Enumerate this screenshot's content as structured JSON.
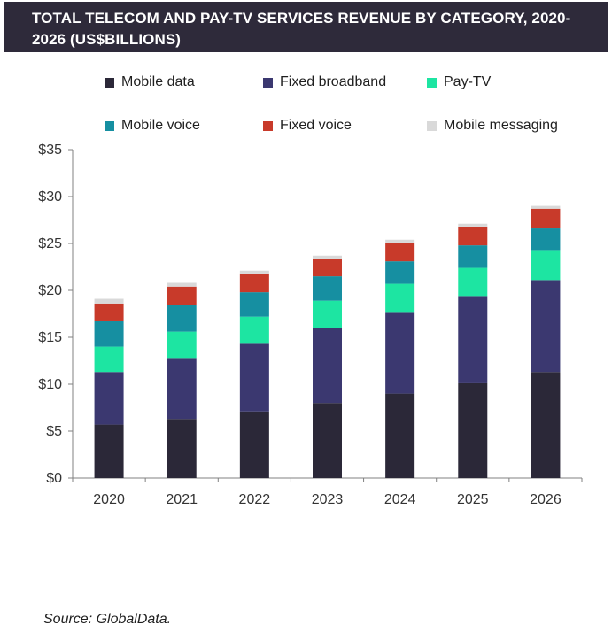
{
  "header": {
    "title": "TOTAL TELECOM AND PAY-TV SERVICES REVENUE BY CATEGORY, 2020-2026 (US$BILLIONS)"
  },
  "chart_data": {
    "type": "bar",
    "stacked": true,
    "title": "TOTAL TELECOM AND PAY-TV SERVICES REVENUE BY CATEGORY, 2020-2026 (US$BILLIONS)",
    "xlabel": "",
    "ylabel": "",
    "ylim": [
      0,
      35
    ],
    "yticks": [
      0,
      5,
      10,
      15,
      20,
      25,
      30,
      35
    ],
    "ytick_labels": [
      "$0",
      "$5",
      "$10",
      "$15",
      "$20",
      "$25",
      "$30",
      "$35"
    ],
    "grid": false,
    "legend_position": "top",
    "categories": [
      "2020",
      "2021",
      "2022",
      "2023",
      "2024",
      "2025",
      "2026"
    ],
    "series": [
      {
        "name": "Mobile data",
        "color": "#2b2838",
        "values": [
          5.7,
          6.3,
          7.1,
          8.0,
          9.0,
          10.1,
          11.3
        ]
      },
      {
        "name": "Fixed broadband",
        "color": "#3b3870",
        "values": [
          5.6,
          6.5,
          7.3,
          8.0,
          8.7,
          9.3,
          9.8
        ]
      },
      {
        "name": "Pay-TV",
        "color": "#1de5a2",
        "values": [
          2.7,
          2.8,
          2.8,
          2.9,
          3.0,
          3.0,
          3.2
        ]
      },
      {
        "name": "Mobile voice",
        "color": "#168fa1",
        "values": [
          2.7,
          2.8,
          2.6,
          2.6,
          2.4,
          2.4,
          2.3
        ]
      },
      {
        "name": "Fixed voice",
        "color": "#c83a2a",
        "values": [
          1.9,
          2.0,
          2.0,
          1.9,
          2.0,
          2.0,
          2.1
        ]
      },
      {
        "name": "Mobile messaging",
        "color": "#d9d9d9",
        "values": [
          0.5,
          0.4,
          0.3,
          0.3,
          0.3,
          0.3,
          0.3
        ]
      }
    ]
  },
  "footer": {
    "source": "Source: GlobalData."
  }
}
